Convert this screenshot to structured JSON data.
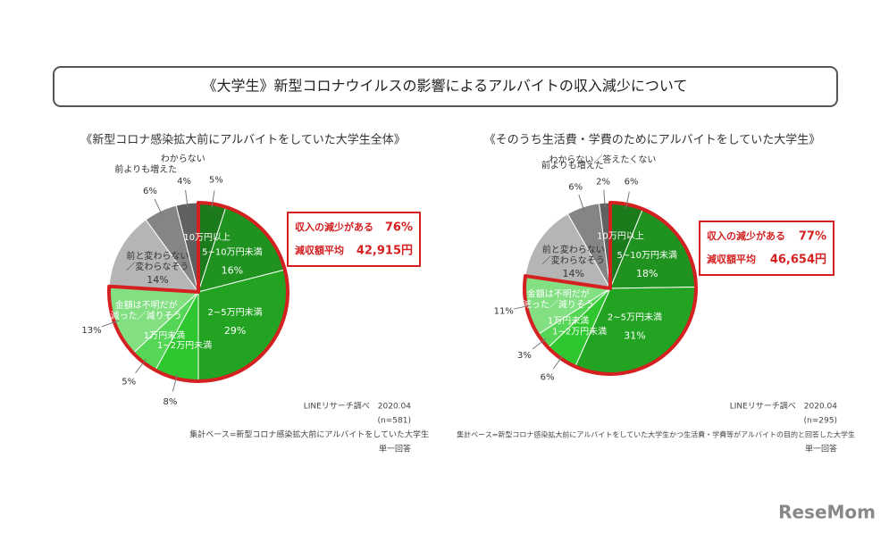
{
  "title": "《大学生》新型コロナウイルスの影響によるアルバイトの収入減少について",
  "watermark": "ReseMom",
  "chart_data": [
    {
      "type": "pie",
      "title": "《新型コロナ感染拡大前にアルバイトをしていた大学生全体》",
      "categories": [
        "10万円以上",
        "5~10万円未満",
        "2~5万円未満",
        "1~2万円未満",
        "1万円未満",
        "金額は不明だが\n減った／減りそう",
        "前と変わらない\n／変わらなそう",
        "前よりも増えた",
        "わからない"
      ],
      "values": [
        5,
        16,
        29,
        8,
        5,
        13,
        14,
        6,
        4
      ],
      "value_labels": [
        "5%",
        "16%",
        "29%",
        "8%",
        "5%",
        "13%",
        "14%",
        "6%",
        "4%"
      ],
      "colors": [
        "#1b7a1b",
        "#1f921f",
        "#22a322",
        "#2fc72f",
        "#56d656",
        "#82e082",
        "#b5b5b5",
        "#858585",
        "#606060"
      ],
      "callout": {
        "decrease_label": "収入の減少がある",
        "decrease_share": "76%",
        "average_label": "減収額平均",
        "average_amount": "42,915円"
      },
      "notes": [
        "LINEリサーチ調べ　2020.04",
        "(n=581)",
        "集計ベース=新型コロナ感染拡大前にアルバイトをしていた大学生",
        "単一回答"
      ]
    },
    {
      "type": "pie",
      "title": "《そのうち生活費・学費のためにアルバイトをしていた大学生》",
      "categories": [
        "10万円以上",
        "5~10万円未満",
        "2~5万円未満",
        "1~2万円未満",
        "1万円未満",
        "金額は不明だが\n減った／減りそう",
        "前と変わらない\n／変わらなそう",
        "前よりも増えた",
        "わからない／答えたくない"
      ],
      "values": [
        6,
        18,
        31,
        6,
        3,
        11,
        14,
        6,
        2
      ],
      "value_labels": [
        "6%",
        "18%",
        "31%",
        "6%",
        "3%",
        "11%",
        "14%",
        "6%",
        "2%"
      ],
      "colors": [
        "#1b7a1b",
        "#1f921f",
        "#22a322",
        "#2fc72f",
        "#56d656",
        "#82e082",
        "#b5b5b5",
        "#858585",
        "#606060"
      ],
      "callout": {
        "decrease_label": "収入の減少がある",
        "decrease_share": "77%",
        "average_label": "減収額平均",
        "average_amount": "46,654円"
      },
      "notes": [
        "LINEリサーチ調べ　2020.04",
        "(n=295)",
        "集計ベース=新型コロナ感染拡大前にアルバイトをしていた大学生かつ生活費・学費等がアルバイトの目的と回答した大学生",
        "単一回答"
      ]
    }
  ]
}
